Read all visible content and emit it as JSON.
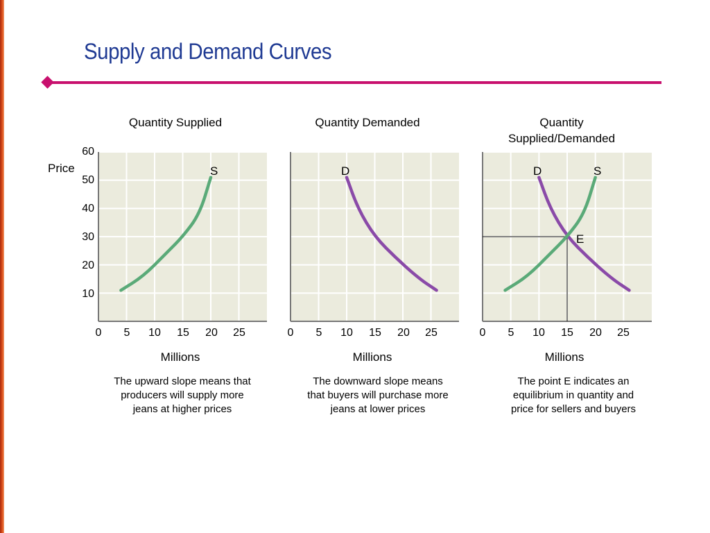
{
  "slide": {
    "title": "Supply and Demand Curves",
    "accent_color": "#c8106e",
    "title_color": "#1f3a93"
  },
  "chart_data": [
    {
      "type": "line",
      "title": "Quantity Supplied",
      "ylabel": "Price",
      "xlabel": "Millions",
      "x_ticks": [
        "0",
        "5",
        "10",
        "15",
        "20",
        "25"
      ],
      "y_ticks": [
        "10",
        "20",
        "30",
        "40",
        "50",
        "60"
      ],
      "xlim": [
        0,
        30
      ],
      "ylim": [
        0,
        60
      ],
      "series": [
        {
          "name": "S",
          "color": "#5aaa78",
          "points": [
            [
              4,
              11
            ],
            [
              8,
              16
            ],
            [
              12,
              24
            ],
            [
              15,
              30
            ],
            [
              18,
              38
            ],
            [
              20,
              51
            ]
          ]
        }
      ],
      "caption": "The upward slope means that producers will supply more jeans at higher prices"
    },
    {
      "type": "line",
      "title": "Quantity Demanded",
      "xlabel": "Millions",
      "x_ticks": [
        "0",
        "5",
        "10",
        "15",
        "20",
        "25"
      ],
      "xlim": [
        0,
        30
      ],
      "ylim": [
        0,
        60
      ],
      "series": [
        {
          "name": "D",
          "color": "#8a4aa8",
          "points": [
            [
              10,
              51
            ],
            [
              12,
              40
            ],
            [
              15,
              30
            ],
            [
              19,
              22
            ],
            [
              23,
              15
            ],
            [
              26,
              11
            ]
          ]
        }
      ],
      "caption": "The downward slope means that buyers will purchase more jeans at lower prices"
    },
    {
      "type": "line",
      "title": "Quantity Supplied/Demanded",
      "xlabel": "Millions",
      "x_ticks": [
        "0",
        "5",
        "10",
        "15",
        "20",
        "25"
      ],
      "xlim": [
        0,
        30
      ],
      "ylim": [
        0,
        60
      ],
      "series": [
        {
          "name": "D",
          "color": "#8a4aa8",
          "points": [
            [
              10,
              51
            ],
            [
              12,
              40
            ],
            [
              15,
              30
            ],
            [
              19,
              22
            ],
            [
              23,
              15
            ],
            [
              26,
              11
            ]
          ]
        },
        {
          "name": "S",
          "color": "#5aaa78",
          "points": [
            [
              4,
              11
            ],
            [
              8,
              16
            ],
            [
              12,
              24
            ],
            [
              15,
              30
            ],
            [
              18,
              38
            ],
            [
              20,
              51
            ]
          ]
        }
      ],
      "equilibrium": {
        "label": "E",
        "x": 15,
        "y": 30
      },
      "caption": "The point E indicates an equilibrium in quantity and price for sellers and buyers"
    }
  ],
  "panel_titles": {
    "supply": "Quantity Supplied",
    "demand": "Quantity Demanded",
    "combined_line1": "Quantity",
    "combined_line2": "Supplied/Demanded"
  },
  "axis": {
    "price_label": "Price",
    "x_unit": "Millions",
    "y_ticks": [
      "60",
      "50",
      "40",
      "30",
      "20",
      "10"
    ],
    "x_ticks": [
      "0",
      "5",
      "10",
      "15",
      "20",
      "25"
    ]
  },
  "curve_labels": {
    "supply": "S",
    "demand": "D",
    "equilibrium": "E"
  },
  "captions": {
    "supply_line1": "The upward slope means that",
    "supply_line2": "producers will supply more",
    "supply_line3": "jeans at higher prices",
    "demand_line1": "The downward slope means",
    "demand_line2": "that buyers will purchase more",
    "demand_line3": "jeans at lower prices",
    "combined_line1": "The point E indicates an",
    "combined_line2": "equilibrium in quantity and",
    "combined_line3": "price for sellers and buyers"
  }
}
